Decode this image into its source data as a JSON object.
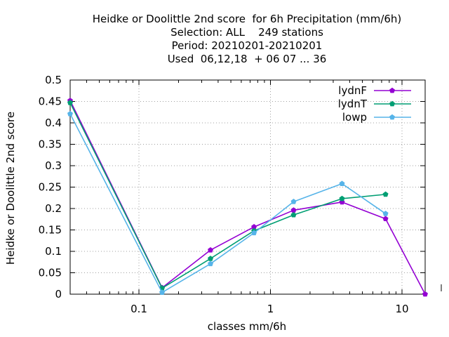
{
  "chart_data": {
    "type": "line",
    "title": [
      "Heidke or Doolittle 2nd score  for 6h Precipitation (mm/6h)",
      "Selection: ALL    249 stations",
      "Period: 20210201-20210201",
      "Used  06,12,18  + 06 07 ... 36"
    ],
    "xlabel": "classes mm/6h",
    "ylabel": "Heidke or Doolittle 2nd score",
    "xscale": "log",
    "xlim": [
      0.03,
      15
    ],
    "ylim": [
      0,
      0.5
    ],
    "xticks": [
      0.1,
      1,
      10
    ],
    "xtick_labels": [
      "0.1",
      "1",
      "10"
    ],
    "yticks": [
      0,
      0.05,
      0.1,
      0.15,
      0.2,
      0.25,
      0.3,
      0.35,
      0.4,
      0.45,
      0.5
    ],
    "ytick_labels": [
      "0",
      "0.05",
      "0.1",
      "0.15",
      "0.2",
      "0.25",
      "0.3",
      "0.35",
      "0.4",
      "0.45",
      "0.5"
    ],
    "grid": true,
    "legend_position": "top-right",
    "series": [
      {
        "name": "lydnF",
        "color": "#9400d3",
        "x": [
          0.03,
          0.15,
          0.35,
          0.75,
          1.5,
          3.5,
          7.5,
          15
        ],
        "values": [
          0.452,
          0.015,
          0.103,
          0.157,
          0.196,
          0.215,
          0.176,
          0.0
        ]
      },
      {
        "name": "lydnT",
        "color": "#009e73",
        "x": [
          0.03,
          0.15,
          0.35,
          0.75,
          1.5,
          3.5,
          7.5
        ],
        "values": [
          0.447,
          0.014,
          0.083,
          0.148,
          0.185,
          0.223,
          0.233
        ]
      },
      {
        "name": "lowp",
        "color": "#56b4e9",
        "x": [
          0.03,
          0.15,
          0.35,
          0.75,
          1.5,
          3.5,
          7.5
        ],
        "values": [
          0.421,
          0.004,
          0.071,
          0.143,
          0.216,
          0.258,
          0.188
        ]
      }
    ]
  }
}
